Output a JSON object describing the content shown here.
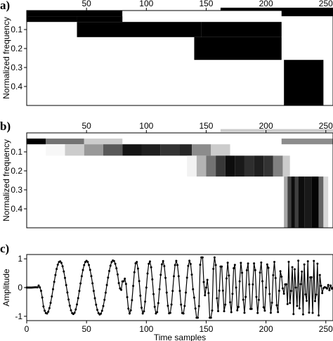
{
  "panels": [
    {
      "label": "a)",
      "ylabel": "Normalized frequency"
    },
    {
      "label": "b)",
      "ylabel": "Normalized frequency"
    },
    {
      "label": "c)",
      "ylabel": "Amplitude",
      "xlabel": "Time samples"
    }
  ],
  "chart_data": [
    {
      "type": "heatmap",
      "panel": "a",
      "colormap": "binary",
      "x_ticks": [
        50,
        100,
        150,
        200,
        250
      ],
      "y_ticks": [
        0.1,
        0.2,
        0.3,
        0.4
      ],
      "xlim": [
        0,
        256
      ],
      "ylim": [
        0.5,
        0
      ],
      "x_axis_position": "top",
      "tiles": [
        {
          "t": [
            0,
            80
          ],
          "f": [
            0.0,
            0.03
          ],
          "v": 1.0
        },
        {
          "t": [
            80,
            160
          ],
          "f": [
            0.0,
            0.03
          ],
          "v": 0.0
        },
        {
          "t": [
            160,
            213
          ],
          "f": [
            0.0,
            0.03
          ],
          "v": 0.0
        },
        {
          "t": [
            213,
            256
          ],
          "f": [
            0.0,
            0.03
          ],
          "v": 1.0
        },
        {
          "t": [
            162,
            256
          ],
          "f": [
            -0.015,
            0.0
          ],
          "v": 1.0
        },
        {
          "t": [
            0,
            42
          ],
          "f": [
            0.03,
            0.06
          ],
          "v": 1.0
        },
        {
          "t": [
            42,
            80
          ],
          "f": [
            0.03,
            0.06
          ],
          "v": 1.0
        },
        {
          "t": [
            42,
            146
          ],
          "f": [
            0.06,
            0.14
          ],
          "v": 1.0
        },
        {
          "t": [
            146,
            213
          ],
          "f": [
            0.06,
            0.14
          ],
          "v": 1.0
        },
        {
          "t": [
            140,
            213
          ],
          "f": [
            0.14,
            0.26
          ],
          "v": 1.0
        },
        {
          "t": [
            215,
            248
          ],
          "f": [
            0.26,
            0.5
          ],
          "v": 1.0
        }
      ]
    },
    {
      "type": "heatmap",
      "panel": "b",
      "colormap": "gray",
      "x_ticks": [
        50,
        100,
        150,
        200,
        250
      ],
      "y_ticks": [
        0.1,
        0.2,
        0.3,
        0.4
      ],
      "xlim": [
        0,
        256
      ],
      "ylim": [
        0.5,
        0
      ],
      "x_axis_position": "top",
      "tiles": [
        {
          "t": [
            162,
            256
          ],
          "f": [
            -0.02,
            -0.005
          ],
          "v": 0.2
        },
        {
          "t": [
            0,
            16
          ],
          "f": [
            0.03,
            0.06
          ],
          "v": 1.0
        },
        {
          "t": [
            16,
            48
          ],
          "f": [
            0.03,
            0.06
          ],
          "v": 0.55
        },
        {
          "t": [
            48,
            80
          ],
          "f": [
            0.03,
            0.06
          ],
          "v": 0.2
        },
        {
          "t": [
            213,
            256
          ],
          "f": [
            0.03,
            0.06
          ],
          "v": 0.45
        },
        {
          "t": [
            16,
            32
          ],
          "f": [
            0.06,
            0.12
          ],
          "v": 0.03
        },
        {
          "t": [
            32,
            48
          ],
          "f": [
            0.06,
            0.12
          ],
          "v": 0.2
        },
        {
          "t": [
            48,
            64
          ],
          "f": [
            0.06,
            0.12
          ],
          "v": 0.4
        },
        {
          "t": [
            64,
            80
          ],
          "f": [
            0.06,
            0.12
          ],
          "v": 0.65
        },
        {
          "t": [
            80,
            96
          ],
          "f": [
            0.06,
            0.12
          ],
          "v": 0.92
        },
        {
          "t": [
            96,
            112
          ],
          "f": [
            0.06,
            0.12
          ],
          "v": 0.88
        },
        {
          "t": [
            112,
            128
          ],
          "f": [
            0.06,
            0.12
          ],
          "v": 0.8
        },
        {
          "t": [
            128,
            138
          ],
          "f": [
            0.06,
            0.12
          ],
          "v": 0.85
        },
        {
          "t": [
            138,
            154
          ],
          "f": [
            0.06,
            0.12
          ],
          "v": 0.45
        },
        {
          "t": [
            154,
            170
          ],
          "f": [
            0.06,
            0.12
          ],
          "v": 0.2
        },
        {
          "t": [
            134,
            142
          ],
          "f": [
            0.12,
            0.23
          ],
          "v": 0.05
        },
        {
          "t": [
            142,
            150
          ],
          "f": [
            0.12,
            0.23
          ],
          "v": 0.3
        },
        {
          "t": [
            150,
            158
          ],
          "f": [
            0.12,
            0.23
          ],
          "v": 0.55
        },
        {
          "t": [
            158,
            166
          ],
          "f": [
            0.12,
            0.23
          ],
          "v": 0.78
        },
        {
          "t": [
            166,
            174
          ],
          "f": [
            0.12,
            0.23
          ],
          "v": 0.95
        },
        {
          "t": [
            174,
            182
          ],
          "f": [
            0.12,
            0.23
          ],
          "v": 0.9
        },
        {
          "t": [
            182,
            190
          ],
          "f": [
            0.12,
            0.23
          ],
          "v": 0.82
        },
        {
          "t": [
            190,
            198
          ],
          "f": [
            0.12,
            0.23
          ],
          "v": 0.88
        },
        {
          "t": [
            198,
            206
          ],
          "f": [
            0.12,
            0.23
          ],
          "v": 0.8
        },
        {
          "t": [
            206,
            214
          ],
          "f": [
            0.12,
            0.23
          ],
          "v": 0.5
        },
        {
          "t": [
            214,
            220
          ],
          "f": [
            0.12,
            0.23
          ],
          "v": 0.2
        },
        {
          "t": [
            215,
            218
          ],
          "f": [
            0.23,
            0.5
          ],
          "v": 0.35
        },
        {
          "t": [
            218,
            221
          ],
          "f": [
            0.23,
            0.5
          ],
          "v": 0.75
        },
        {
          "t": [
            221,
            224
          ],
          "f": [
            0.23,
            0.5
          ],
          "v": 0.95
        },
        {
          "t": [
            224,
            227
          ],
          "f": [
            0.23,
            0.5
          ],
          "v": 0.75
        },
        {
          "t": [
            227,
            232
          ],
          "f": [
            0.23,
            0.5
          ],
          "v": 0.95
        },
        {
          "t": [
            232,
            238
          ],
          "f": [
            0.23,
            0.5
          ],
          "v": 0.9
        },
        {
          "t": [
            238,
            244
          ],
          "f": [
            0.23,
            0.5
          ],
          "v": 0.98
        },
        {
          "t": [
            244,
            248
          ],
          "f": [
            0.23,
            0.5
          ],
          "v": 0.6
        },
        {
          "t": [
            248,
            252
          ],
          "f": [
            0.23,
            0.5
          ],
          "v": 0.15
        }
      ]
    },
    {
      "type": "line",
      "panel": "c",
      "x_ticks": [
        0,
        50,
        100,
        150,
        200,
        250
      ],
      "y_ticks": [
        -1,
        0,
        1
      ],
      "xlim": [
        0,
        256
      ],
      "ylim": [
        -1.15,
        1.15
      ],
      "marker": "dot",
      "signal_segments": [
        {
          "t": [
            0,
            10
          ],
          "f": 0.005,
          "a0": -0.05,
          "a1": 0.1
        },
        {
          "t": [
            10,
            80
          ],
          "f": 0.045,
          "a0": 0.9,
          "a1": 0.95
        },
        {
          "t": [
            80,
            160
          ],
          "f": 0.09,
          "a0": 0.9,
          "a1": 0.95
        },
        {
          "t": [
            140,
            215
          ],
          "f": 0.18,
          "a0": 0.85,
          "a1": 0.9
        },
        {
          "t": [
            160,
            256
          ],
          "f": 0.0,
          "a0": 0.05,
          "a1": 0.05
        },
        {
          "t": [
            215,
            248
          ],
          "f": 0.38,
          "a0": 0.9,
          "a1": 1.0
        },
        {
          "t": [
            248,
            256
          ],
          "f": 0.45,
          "a0": 0.15,
          "a1": 0.15
        }
      ]
    }
  ]
}
